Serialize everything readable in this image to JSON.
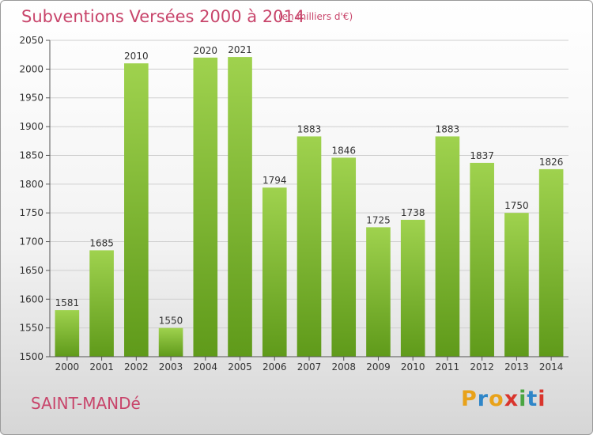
{
  "header": {
    "title": "Subventions Versées 2000 à 2014",
    "unit_note": "(en milliers d'€)"
  },
  "footer": {
    "place": "SAINT-MANDé",
    "logo_letters": [
      "P",
      "r",
      "o",
      "x",
      "i",
      "t",
      "i"
    ],
    "logo_colors": [
      "#e8a21a",
      "#2f86c8",
      "#e8a21a",
      "#d9352d",
      "#4aa542",
      "#2f86c8",
      "#d9352d"
    ]
  },
  "chart_data": {
    "type": "bar",
    "title": "Subventions Versées 2000 à 2014",
    "categories": [
      "2000",
      "2001",
      "2002",
      "2003",
      "2004",
      "2005",
      "2006",
      "2007",
      "2008",
      "2009",
      "2010",
      "2011",
      "2012",
      "2013",
      "2014"
    ],
    "values": [
      1581,
      1685,
      2010,
      1550,
      2020,
      2021,
      1794,
      1883,
      1846,
      1725,
      1738,
      1883,
      1837,
      1750,
      1826
    ],
    "ylim": [
      1500,
      2050
    ],
    "yticks": [
      1500,
      1550,
      1600,
      1650,
      1700,
      1750,
      1800,
      1850,
      1900,
      1950,
      2000,
      2050
    ],
    "grid": true,
    "bar_color_top": "#9fd24e",
    "bar_color_bottom": "#5f9a1a"
  }
}
